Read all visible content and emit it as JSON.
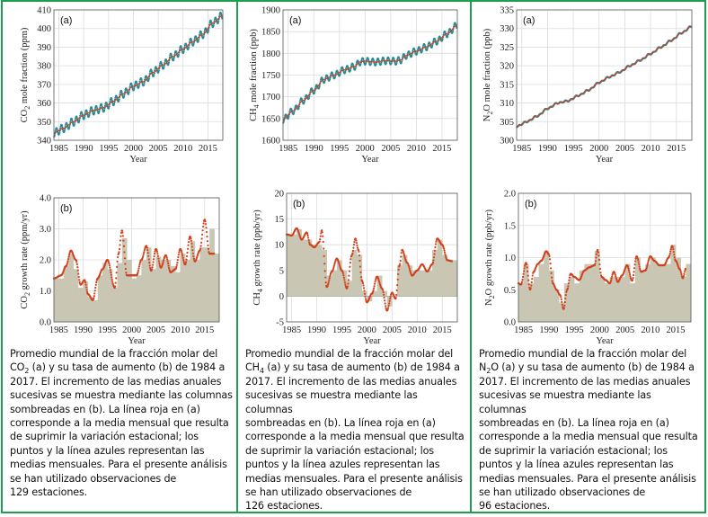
{
  "colors": {
    "border": "#1e9e4e",
    "bars": "#c9c7b3",
    "red_line": "#d2401c",
    "blue_points": "#2a8a98",
    "grid": "#dcdcdc"
  },
  "panels": [
    {
      "id": "co2",
      "caption": {
        "line1": "Promedio mundial de la fracción molar del",
        "line2_pre": "CO",
        "line2_sub": "2",
        "line2_post": " (a) y su tasa de aumento (b) de 1984 a",
        "line3": "2017. El incremento de las medias anuales",
        "line4": "sucesivas se muestra mediante las columnas",
        "line5": "sombreadas en (b). La línea roja en (a)",
        "line6": "corresponde a la media mensual que resulta",
        "line7": "de suprimir la variación estacional; los",
        "line8": "puntos y la línea azules representan las",
        "line9": "medias mensuales. Para el presente análisis",
        "line10": "se han utilizado observaciones de",
        "line11": "129 estaciones."
      }
    },
    {
      "id": "ch4",
      "caption": {
        "line1": "Promedio mundial de la fracción molar del",
        "line2_pre": "CH",
        "line2_sub": "4",
        "line2_post": " (a) y su tasa de aumento (b) de 1984 a",
        "line3": "2017. El incremento de las medias anuales",
        "line4": "sucesivas se muestra mediante las columnas",
        "line5": "sombreadas en (b). La línea roja en (a)",
        "line6": "corresponde a la media mensual que resulta",
        "line7": "de suprimir la variación estacional; los",
        "line8": "puntos y la línea azules representan las",
        "line9": "medias mensuales. Para el presente análisis",
        "line10": "se han utilizado observaciones de",
        "line11": "126 estaciones."
      }
    },
    {
      "id": "n2o",
      "caption": {
        "line1": "Promedio mundial de la fracción molar del",
        "line2_pre": "N",
        "line2_sub": "2",
        "line2_post": "O (a) y su tasa de aumento (b) de 1984 a",
        "line3": "2017. El incremento de las medias anuales",
        "line4": "sucesivas se muestra mediante las columnas",
        "line5": "sombreadas en (b). La línea roja en (a)",
        "line6": "corresponde a la media mensual que resulta",
        "line7": "de suprimir la variación estacional; los",
        "line8": "puntos y la línea azules representan las",
        "line9": "medias mensuales. Para el presente análisis",
        "line10": "se han utilizado observaciones de",
        "line11": "96 estaciones."
      }
    }
  ],
  "chart_data": [
    {
      "id": "co2_a",
      "type": "line",
      "panel_label": "(a)",
      "xlabel": "Year",
      "ylabel_pre": "CO",
      "ylabel_sub": "2",
      "ylabel_post": " mole fraction (ppm)",
      "xlim": [
        1984,
        2018
      ],
      "ylim": [
        340,
        410
      ],
      "xticks": [
        "1985",
        "1990",
        "1995",
        "2000",
        "2005",
        "2010",
        "2015"
      ],
      "yticks": [
        "340",
        "350",
        "360",
        "370",
        "380",
        "390",
        "400",
        "410"
      ],
      "seasonal_amplitude": 2.2,
      "series": [
        {
          "name": "deseasonalized",
          "x": [
            1984,
            1986,
            1988,
            1990,
            1992,
            1994,
            1996,
            1998,
            2000,
            2002,
            2004,
            2006,
            2008,
            2010,
            2012,
            2014,
            2016,
            2018
          ],
          "values": [
            344,
            346.5,
            350,
            353.5,
            356,
            357.5,
            361,
            365,
            369,
            371.5,
            376.5,
            380.5,
            385,
            389,
            393,
            397,
            403,
            407
          ]
        }
      ]
    },
    {
      "id": "co2_b",
      "type": "bar",
      "panel_label": "(b)",
      "xlabel": "Year",
      "ylabel_pre": "CO",
      "ylabel_sub": "2",
      "ylabel_post": " growth rate (ppm/yr)",
      "xlim": [
        1984,
        2018
      ],
      "ylim": [
        0,
        4
      ],
      "xticks": [
        "1985",
        "1990",
        "1995",
        "2000",
        "2005",
        "2010",
        "2015"
      ],
      "yticks": [
        "0.0",
        "1.0",
        "2.0",
        "3.0",
        "4.0"
      ],
      "bars": {
        "years": [
          1984,
          1985,
          1986,
          1987,
          1988,
          1989,
          1990,
          1991,
          1992,
          1993,
          1994,
          1995,
          1996,
          1997,
          1998,
          1999,
          2000,
          2001,
          2002,
          2003,
          2004,
          2005,
          2006,
          2007,
          2008,
          2009,
          2010,
          2011,
          2012,
          2013,
          2014,
          2015,
          2016,
          2017
        ],
        "values": [
          1.4,
          1.4,
          1.8,
          2.2,
          1.7,
          1.1,
          1.3,
          0.8,
          0.7,
          1.5,
          1.9,
          1.7,
          1.1,
          1.9,
          2.7,
          2.0,
          1.4,
          1.5,
          2.0,
          2.4,
          1.7,
          2.1,
          2.0,
          2.0,
          1.8,
          1.6,
          2.2,
          2.0,
          2.6,
          2.0,
          2.4,
          2.4,
          3.0,
          2.2
        ]
      },
      "line": {
        "x": [
          1984,
          1985.5,
          1986.5,
          1987.5,
          1988.5,
          1989.5,
          1990.3,
          1991,
          1992,
          1993,
          1994,
          1995,
          1996.5,
          1997.3,
          1998,
          1999,
          2000,
          2001,
          2002,
          2003,
          2004,
          2005,
          2006,
          2007,
          2008,
          2009,
          2010,
          2011,
          2012,
          2013,
          2014,
          2015,
          2016,
          2017
        ],
        "values": [
          1.4,
          1.5,
          1.8,
          2.3,
          2.0,
          1.2,
          1.35,
          0.9,
          0.7,
          1.4,
          1.7,
          2.0,
          1.1,
          2.2,
          2.95,
          1.5,
          1.5,
          1.5,
          2.0,
          2.45,
          1.65,
          2.35,
          1.75,
          2.15,
          1.6,
          1.7,
          2.35,
          1.85,
          2.75,
          1.95,
          2.3,
          3.3,
          2.2,
          2.2
        ]
      }
    },
    {
      "id": "ch4_a",
      "type": "line",
      "panel_label": "(a)",
      "xlabel": "Year",
      "ylabel_pre": "CH",
      "ylabel_sub": "4",
      "ylabel_post": " mole fraction (ppb)",
      "xlim": [
        1984,
        2018
      ],
      "ylim": [
        1600,
        1900
      ],
      "xticks": [
        "1985",
        "1990",
        "1995",
        "2000",
        "2005",
        "2010",
        "2015"
      ],
      "yticks": [
        "1600",
        "1650",
        "1700",
        "1750",
        "1800",
        "1850",
        "1900"
      ],
      "seasonal_amplitude": 8,
      "series": [
        {
          "name": "deseasonalized",
          "x": [
            1984,
            1986,
            1988,
            1990,
            1992,
            1994,
            1996,
            1998,
            1999,
            2000,
            2002,
            2004,
            2006,
            2007,
            2008,
            2010,
            2012,
            2014,
            2016,
            2018
          ],
          "values": [
            1648,
            1668,
            1692,
            1715,
            1740,
            1750,
            1762,
            1770,
            1780,
            1782,
            1780,
            1783,
            1782,
            1785,
            1795,
            1805,
            1815,
            1828,
            1845,
            1865
          ]
        }
      ]
    },
    {
      "id": "ch4_b",
      "type": "bar",
      "panel_label": "(b)",
      "xlabel": "Year",
      "ylabel_pre": "CH",
      "ylabel_sub": "4",
      "ylabel_post": " growth rate (ppb/yr)",
      "xlim": [
        1984,
        2018
      ],
      "ylim": [
        -5,
        20
      ],
      "xticks": [
        "1985",
        "1990",
        "1995",
        "2000",
        "2005",
        "2010",
        "2015"
      ],
      "yticks": [
        "-5",
        "0",
        "5",
        "10",
        "15",
        "20"
      ],
      "bars": {
        "years": [
          1984,
          1985,
          1986,
          1987,
          1988,
          1989,
          1990,
          1991,
          1992,
          1993,
          1994,
          1995,
          1996,
          1997,
          1998,
          1999,
          2000,
          2001,
          2002,
          2003,
          2004,
          2005,
          2006,
          2007,
          2008,
          2009,
          2010,
          2011,
          2012,
          2013,
          2014,
          2015,
          2016,
          2017
        ],
        "values": [
          12,
          12,
          13,
          11,
          11,
          10,
          10,
          9,
          4,
          5,
          7,
          5,
          3,
          9,
          8,
          1,
          -1,
          1,
          4,
          1,
          -2,
          0,
          6,
          8,
          6,
          5,
          5,
          5,
          5,
          9,
          11,
          8,
          7,
          7
        ]
      },
      "line": {
        "x": [
          1984,
          1985,
          1986,
          1987,
          1988,
          1988.7,
          1989.5,
          1990.5,
          1991,
          1992,
          1993,
          1994,
          1995,
          1996,
          1997,
          1997.7,
          1998.3,
          1999,
          2000,
          2001,
          2002,
          2003,
          2004,
          2005,
          2005.7,
          2006.5,
          2007,
          2008,
          2009,
          2010,
          2011,
          2012,
          2013,
          2014,
          2015,
          2016,
          2017
        ],
        "values": [
          12,
          11.8,
          13.2,
          11,
          12.4,
          10,
          9.5,
          10.5,
          12.8,
          1.8,
          4.8,
          7.3,
          5,
          1.5,
          8,
          11.2,
          9,
          3,
          -1.2,
          0.5,
          3.8,
          1.5,
          -2.8,
          0.7,
          -0.5,
          6,
          9,
          6.5,
          4,
          5,
          6.2,
          4.8,
          6.2,
          11.2,
          10,
          7,
          6.8
        ]
      }
    },
    {
      "id": "n2o_a",
      "type": "line",
      "panel_label": "(a)",
      "xlabel": "Year",
      "ylabel_pre": "N",
      "ylabel_sub": "2",
      "ylabel_post": "O mole fraction (ppb)",
      "xlim": [
        1984,
        2018
      ],
      "ylim": [
        300,
        335
      ],
      "xticks": [
        "1985",
        "1990",
        "1995",
        "2000",
        "2005",
        "2010",
        "2015"
      ],
      "yticks": [
        "300",
        "305",
        "310",
        "315",
        "320",
        "325",
        "330",
        "335"
      ],
      "seasonal_amplitude": 0.2,
      "series": [
        {
          "name": "deseasonalized",
          "x": [
            1984,
            1986,
            1988,
            1990,
            1992,
            1994,
            1996,
            1998,
            2000,
            2002,
            2004,
            2006,
            2008,
            2010,
            2012,
            2014,
            2016,
            2018
          ],
          "values": [
            303.7,
            305,
            306.5,
            308.5,
            310,
            310.6,
            312,
            313.5,
            315.5,
            317,
            318.3,
            320,
            321.5,
            323.2,
            325,
            326.8,
            328.8,
            330.6
          ]
        }
      ]
    },
    {
      "id": "n2o_b",
      "type": "bar",
      "panel_label": "(b)",
      "xlabel": "Year",
      "ylabel_pre": "N",
      "ylabel_sub": "2",
      "ylabel_post": "O growth rate (ppb/yr)",
      "xlim": [
        1984,
        2018
      ],
      "ylim": [
        0,
        2
      ],
      "xticks": [
        "1985",
        "1990",
        "1995",
        "2000",
        "2005",
        "2010",
        "2015"
      ],
      "yticks": [
        "0.0",
        "0.5",
        "1.0",
        "1.5",
        "2.0"
      ],
      "bars": {
        "years": [
          1984,
          1985,
          1986,
          1987,
          1988,
          1989,
          1990,
          1991,
          1992,
          1993,
          1994,
          1995,
          1996,
          1997,
          1998,
          1999,
          2000,
          2001,
          2002,
          2003,
          2004,
          2005,
          2006,
          2007,
          2008,
          2009,
          2010,
          2011,
          2012,
          2013,
          2014,
          2015,
          2016,
          2017
        ],
        "values": [
          0.6,
          0.9,
          0.6,
          0.7,
          0.9,
          1.1,
          0.8,
          0.5,
          0.3,
          0.6,
          0.7,
          0.6,
          0.8,
          0.9,
          0.9,
          1.1,
          0.7,
          0.6,
          0.7,
          0.7,
          0.7,
          0.9,
          0.6,
          1.0,
          0.8,
          0.9,
          1.0,
          0.9,
          0.9,
          0.9,
          1.2,
          1.0,
          0.7,
          0.9
        ]
      },
      "line": {
        "x": [
          1984,
          1984.5,
          1985.5,
          1986.3,
          1987,
          1987.8,
          1988.5,
          1989.5,
          1990,
          1990.8,
          1991.5,
          1992.2,
          1992.9,
          1993.6,
          1994.3,
          1995,
          1996,
          1997,
          1998,
          1999,
          1999.6,
          2000.4,
          2001.2,
          2002,
          2002.8,
          2003.6,
          2004.4,
          2005.4,
          2006.4,
          2007.3,
          2008.2,
          2009,
          2010,
          2010.8,
          2011.8,
          2012.7,
          2013.6,
          2014.3,
          2015,
          2015.8,
          2016.4,
          2017
        ],
        "values": [
          0.6,
          0.58,
          0.92,
          0.5,
          0.78,
          0.9,
          0.95,
          1.1,
          1.05,
          0.6,
          0.5,
          0.42,
          0.2,
          0.5,
          0.75,
          0.7,
          0.65,
          0.8,
          0.85,
          0.88,
          1.12,
          0.7,
          0.65,
          0.6,
          0.78,
          0.62,
          0.72,
          0.88,
          0.64,
          1.02,
          0.78,
          0.8,
          1.02,
          0.95,
          0.88,
          0.88,
          1.0,
          1.18,
          0.95,
          0.82,
          0.68,
          0.83
        ]
      }
    }
  ]
}
